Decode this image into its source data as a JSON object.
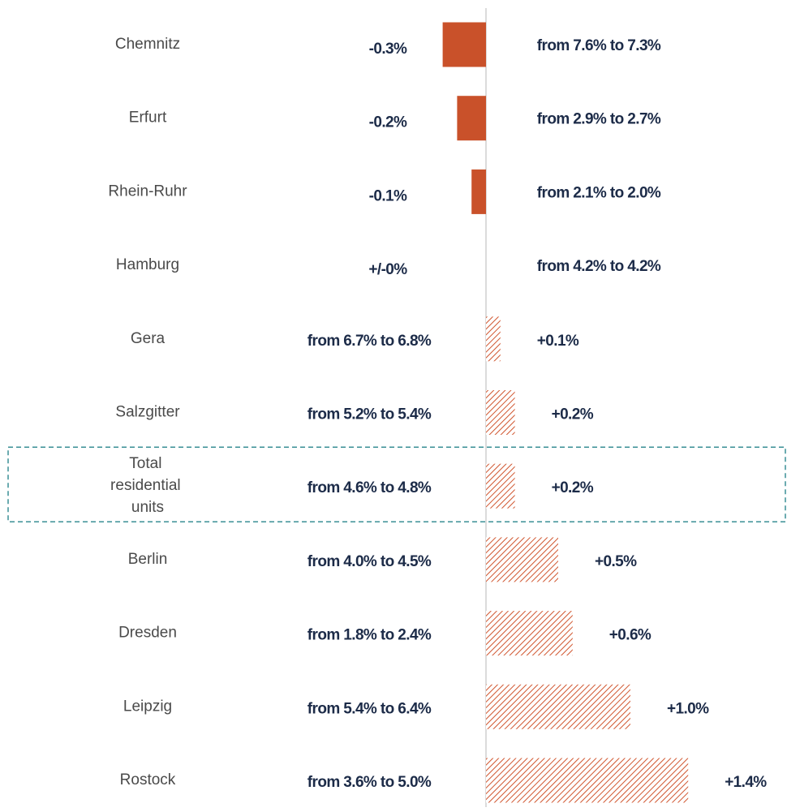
{
  "chart_data": {
    "type": "bar",
    "orientation": "horizontal",
    "categories": [
      "Chemnitz",
      "Erfurt",
      "Rhein-Ruhr",
      "Hamburg",
      "Gera",
      "Salzgitter",
      "Total residential units",
      "Berlin",
      "Dresden",
      "Leipzig",
      "Rostock"
    ],
    "values": [
      -0.3,
      -0.2,
      -0.1,
      0,
      0.1,
      0.2,
      0.2,
      0.5,
      0.6,
      1.0,
      1.4
    ],
    "value_labels": [
      "-0.3%",
      "-0.2%",
      "-0.1%",
      "+/-0%",
      "+0.1%",
      "+0.2%",
      "+0.2%",
      "+0.5%",
      "+0.6%",
      "+1.0%",
      "+1.4%"
    ],
    "annotations": [
      "from 7.6% to 7.3%",
      "from 2.9% to 2.7%",
      "from 2.1% to 2.0%",
      "from 4.2% to 4.2%",
      "from 6.7% to 6.8%",
      "from 5.2% to 5.4%",
      "from 4.6% to 4.8%",
      "from 4.0% to 4.5%",
      "from 1.8% to 2.4%",
      "from 5.4% to 6.4%",
      "from 3.6% to 5.0%"
    ],
    "color": "#c9512a",
    "highlight_index": 6
  }
}
